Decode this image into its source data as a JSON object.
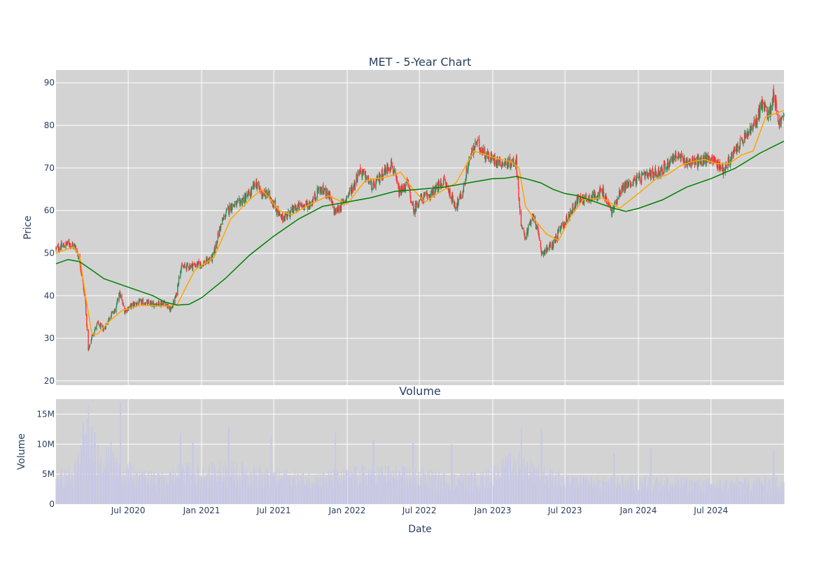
{
  "chart_data": [
    {
      "type": "candlestick",
      "title": "MET - 5-Year Chart",
      "ylabel": "Price",
      "ylim": [
        19,
        93
      ],
      "yticks": [
        20,
        30,
        40,
        50,
        60,
        70,
        80,
        90
      ],
      "xlim": [
        "2020-01-02",
        "2024-12-31"
      ],
      "xticks": [
        {
          "date": "2020-07-01",
          "label": "Jul 2020"
        },
        {
          "date": "2021-01-01",
          "label": "Jan 2021"
        },
        {
          "date": "2021-07-01",
          "label": "Jul 2021"
        },
        {
          "date": "2022-01-01",
          "label": "Jan 2022"
        },
        {
          "date": "2022-07-01",
          "label": "Jul 2022"
        },
        {
          "date": "2023-01-01",
          "label": "Jan 2023"
        },
        {
          "date": "2023-07-01",
          "label": "Jul 2023"
        },
        {
          "date": "2024-01-01",
          "label": "Jan 2024"
        },
        {
          "date": "2024-07-01",
          "label": "Jul 2024"
        }
      ],
      "grid": true,
      "up_color": "#2e8b57",
      "down_color": "#ff3333",
      "close_series": {
        "x": [
          "2020-01-02",
          "2020-02-03",
          "2020-02-20",
          "2020-03-02",
          "2020-03-16",
          "2020-03-23",
          "2020-04-01",
          "2020-04-15",
          "2020-05-01",
          "2020-05-15",
          "2020-06-01",
          "2020-06-08",
          "2020-06-22",
          "2020-07-15",
          "2020-08-03",
          "2020-09-01",
          "2020-10-01",
          "2020-10-15",
          "2020-10-29",
          "2020-11-09",
          "2020-12-01",
          "2021-01-04",
          "2021-01-29",
          "2021-02-16",
          "2021-03-01",
          "2021-03-15",
          "2021-04-01",
          "2021-05-03",
          "2021-05-17",
          "2021-06-01",
          "2021-06-21",
          "2021-07-19",
          "2021-08-02",
          "2021-09-01",
          "2021-10-01",
          "2021-10-22",
          "2021-11-15",
          "2021-12-01",
          "2021-12-20",
          "2022-01-18",
          "2022-02-01",
          "2022-02-15",
          "2022-03-07",
          "2022-04-01",
          "2022-04-22",
          "2022-05-12",
          "2022-06-01",
          "2022-06-16",
          "2022-07-01",
          "2022-08-01",
          "2022-09-01",
          "2022-09-30",
          "2022-10-17",
          "2022-11-01",
          "2022-11-21",
          "2022-12-15",
          "2023-01-03",
          "2023-02-01",
          "2023-03-01",
          "2023-03-13",
          "2023-03-24",
          "2023-04-14",
          "2023-05-04",
          "2023-05-31",
          "2023-06-15",
          "2023-07-03",
          "2023-08-01",
          "2023-09-01",
          "2023-10-03",
          "2023-10-27",
          "2023-11-15",
          "2023-12-01",
          "2024-01-02",
          "2024-02-01",
          "2024-03-01",
          "2024-04-01",
          "2024-05-01",
          "2024-06-03",
          "2024-07-01",
          "2024-08-01",
          "2024-09-03",
          "2024-10-01",
          "2024-10-21",
          "2024-11-04",
          "2024-11-25",
          "2024-12-05",
          "2024-12-18",
          "2024-12-31"
        ],
        "values": [
          51.0,
          52.3,
          51.5,
          48.0,
          38.0,
          27.0,
          30.5,
          33.5,
          32.0,
          35.0,
          37.0,
          41.0,
          36.5,
          38.0,
          38.5,
          38.0,
          38.5,
          36.5,
          40.0,
          46.5,
          47.0,
          47.5,
          49.0,
          56.0,
          59.0,
          61.0,
          61.5,
          64.0,
          66.5,
          64.0,
          63.5,
          58.0,
          59.0,
          61.0,
          61.5,
          65.0,
          64.0,
          59.5,
          61.5,
          66.0,
          69.5,
          68.0,
          65.5,
          69.0,
          71.0,
          64.0,
          66.5,
          60.0,
          62.5,
          64.0,
          67.0,
          61.0,
          64.0,
          71.5,
          76.0,
          73.0,
          72.0,
          71.0,
          71.5,
          56.0,
          54.0,
          59.0,
          50.0,
          52.0,
          55.0,
          57.5,
          62.5,
          63.0,
          64.5,
          59.5,
          64.5,
          66.0,
          67.5,
          68.5,
          69.5,
          73.0,
          71.5,
          71.5,
          72.5,
          69.5,
          74.5,
          78.0,
          80.5,
          85.0,
          82.5,
          88.0,
          80.5,
          82.0
        ]
      },
      "ma_short": {
        "color": "#ffa500",
        "x": [
          "2020-01-02",
          "2020-02-15",
          "2020-03-02",
          "2020-03-16",
          "2020-04-01",
          "2020-04-15",
          "2020-05-15",
          "2020-06-15",
          "2020-08-01",
          "2020-10-01",
          "2020-11-01",
          "2020-12-15",
          "2021-02-01",
          "2021-03-15",
          "2021-05-01",
          "2021-06-01",
          "2021-07-15",
          "2021-08-15",
          "2021-10-01",
          "2021-11-15",
          "2022-01-01",
          "2022-02-15",
          "2022-03-15",
          "2022-04-15",
          "2022-05-15",
          "2022-06-15",
          "2022-07-15",
          "2022-08-15",
          "2022-10-01",
          "2022-11-15",
          "2023-01-01",
          "2023-02-15",
          "2023-03-08",
          "2023-03-24",
          "2023-04-15",
          "2023-05-15",
          "2023-06-15",
          "2023-07-15",
          "2023-08-15",
          "2023-10-01",
          "2023-11-15",
          "2024-01-01",
          "2024-02-15",
          "2024-03-15",
          "2024-04-15",
          "2024-05-15",
          "2024-06-15",
          "2024-07-15",
          "2024-08-15",
          "2024-09-15",
          "2024-10-15",
          "2024-11-15",
          "2024-12-31"
        ],
        "values": [
          50.0,
          51.5,
          49.0,
          40.0,
          31.0,
          31.0,
          34.0,
          36.5,
          37.8,
          37.5,
          38.0,
          46.0,
          49.0,
          58.0,
          62.5,
          65.0,
          60.0,
          59.0,
          61.5,
          63.5,
          61.5,
          67.0,
          67.5,
          68.0,
          69.0,
          65.0,
          62.0,
          64.0,
          66.5,
          74.0,
          72.5,
          71.5,
          70.0,
          61.0,
          58.0,
          54.5,
          53.0,
          58.5,
          62.5,
          63.0,
          60.5,
          64.0,
          67.5,
          68.5,
          70.5,
          71.5,
          72.0,
          71.0,
          71.0,
          73.0,
          74.0,
          82.0,
          83.5
        ]
      },
      "ma_long": {
        "color": "#008000",
        "x": [
          "2020-01-02",
          "2020-02-01",
          "2020-03-01",
          "2020-04-01",
          "2020-05-01",
          "2020-06-01",
          "2020-07-01",
          "2020-08-01",
          "2020-09-01",
          "2020-10-01",
          "2020-11-01",
          "2020-12-01",
          "2021-01-01",
          "2021-03-01",
          "2021-05-01",
          "2021-07-01",
          "2021-09-01",
          "2021-11-01",
          "2022-01-01",
          "2022-03-01",
          "2022-05-01",
          "2022-07-01",
          "2022-09-01",
          "2022-11-01",
          "2023-01-01",
          "2023-02-01",
          "2023-03-01",
          "2023-04-01",
          "2023-05-01",
          "2023-06-01",
          "2023-07-01",
          "2023-08-01",
          "2023-09-01",
          "2023-10-01",
          "2023-11-01",
          "2023-12-01",
          "2024-01-01",
          "2024-03-01",
          "2024-05-01",
          "2024-07-01",
          "2024-09-01",
          "2024-11-01",
          "2024-12-31"
        ],
        "values": [
          47.5,
          48.5,
          48.0,
          46.0,
          44.0,
          43.0,
          42.0,
          41.0,
          40.0,
          38.5,
          37.8,
          38.0,
          39.5,
          44.0,
          49.5,
          54.0,
          58.0,
          61.0,
          62.0,
          63.0,
          64.5,
          65.0,
          65.5,
          66.5,
          67.5,
          67.6,
          68.0,
          67.3,
          66.5,
          65.0,
          64.0,
          63.5,
          62.5,
          61.5,
          60.5,
          59.8,
          60.5,
          62.5,
          65.5,
          67.5,
          70.0,
          73.5,
          76.3
        ]
      }
    },
    {
      "type": "bar",
      "title": "Volume",
      "xlabel": "Date",
      "ylabel": "Volume",
      "ylim": [
        0,
        17.5
      ],
      "yticks": [
        0,
        5,
        10,
        15
      ],
      "ytick_labels": [
        "0",
        "5M",
        "10M",
        "15M"
      ],
      "unit": "millions of shares",
      "bar_color": "#c8c8e6",
      "grid": true,
      "baseline_series": {
        "x": [
          "2020-01-02",
          "2020-02-15",
          "2020-03-01",
          "2020-03-20",
          "2020-04-15",
          "2020-05-15",
          "2020-06-15",
          "2020-08-01",
          "2020-10-01",
          "2020-11-15",
          "2021-01-01",
          "2021-03-01",
          "2021-06-01",
          "2021-09-01",
          "2021-12-01",
          "2022-03-01",
          "2022-06-01",
          "2022-09-01",
          "2022-12-01",
          "2023-03-01",
          "2023-03-20",
          "2023-04-15",
          "2023-05-15",
          "2023-07-01",
          "2023-10-01",
          "2024-01-01",
          "2024-04-01",
          "2024-07-01",
          "2024-10-01",
          "2024-12-31"
        ],
        "values": [
          4.0,
          4.5,
          7.0,
          10.5,
          8.0,
          6.5,
          5.5,
          4.0,
          3.8,
          5.0,
          4.5,
          5.2,
          4.5,
          3.8,
          4.0,
          4.8,
          4.5,
          3.8,
          3.8,
          6.5,
          6.0,
          5.0,
          4.5,
          3.5,
          3.2,
          3.5,
          3.2,
          3.0,
          3.2,
          3.5
        ]
      },
      "peaks": [
        {
          "x": "2020-03-10",
          "value": 13.5
        },
        {
          "x": "2020-03-23",
          "value": 16.5
        },
        {
          "x": "2020-04-08",
          "value": 12.0
        },
        {
          "x": "2020-05-18",
          "value": 10.5
        },
        {
          "x": "2020-06-12",
          "value": 17.0
        },
        {
          "x": "2020-11-09",
          "value": 11.8
        },
        {
          "x": "2020-12-10",
          "value": 10.5
        },
        {
          "x": "2021-03-10",
          "value": 12.8
        },
        {
          "x": "2021-06-25",
          "value": 11.5
        },
        {
          "x": "2021-12-03",
          "value": 12.0
        },
        {
          "x": "2022-03-08",
          "value": 10.8
        },
        {
          "x": "2022-06-15",
          "value": 10.2
        },
        {
          "x": "2022-09-20",
          "value": 10.0
        },
        {
          "x": "2023-03-13",
          "value": 12.8
        },
        {
          "x": "2023-05-03",
          "value": 12.5
        },
        {
          "x": "2023-11-01",
          "value": 8.5
        },
        {
          "x": "2024-02-01",
          "value": 9.2
        },
        {
          "x": "2024-12-05",
          "value": 9.0
        }
      ]
    }
  ]
}
